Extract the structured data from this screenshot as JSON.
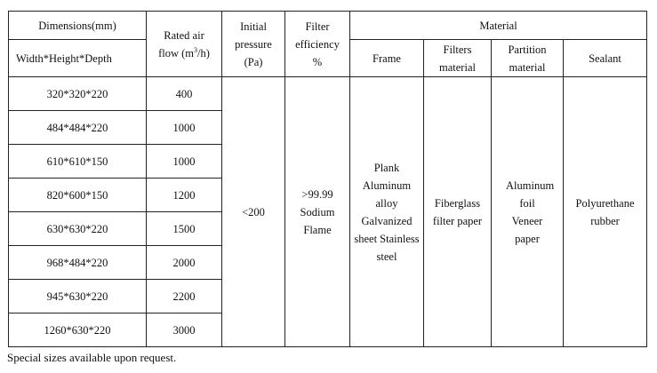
{
  "headers": {
    "dimensions": "Dimensions(mm)",
    "dimensions_sub": "Width*Height*Depth",
    "rated_air_flow": "Rated air flow (m",
    "rated_air_flow_sup": "3",
    "rated_air_flow_end": "/h)",
    "initial_pressure": "Initial pressure (Pa)",
    "filter_efficiency": "Filter efficiency %",
    "material": "Material",
    "frame": "Frame",
    "filters_material": "Filters material",
    "partition_material": "Partition material",
    "sealant": "Sealant"
  },
  "rows": [
    {
      "dimensions": "320*320*220",
      "air_flow": "400"
    },
    {
      "dimensions": "484*484*220",
      "air_flow": "1000"
    },
    {
      "dimensions": "610*610*150",
      "air_flow": "1000"
    },
    {
      "dimensions": "820*600*150",
      "air_flow": "1200"
    },
    {
      "dimensions": "630*630*220",
      "air_flow": "1500"
    },
    {
      "dimensions": "968*484*220",
      "air_flow": "2000"
    },
    {
      "dimensions": "945*630*220",
      "air_flow": "2200"
    },
    {
      "dimensions": "1260*630*220",
      "air_flow": "3000"
    }
  ],
  "shared": {
    "initial_pressure": "<200",
    "filter_efficiency": ">99.99 Sodium Flame",
    "frame": "Plank Aluminum alloy Galvanized sheet Stainless steel",
    "filters_material": "Fiberglass filter paper",
    "partition_material": "Aluminum foil Veneer paper",
    "sealant": "Polyurethane rubber"
  },
  "note": "Special sizes available upon request."
}
